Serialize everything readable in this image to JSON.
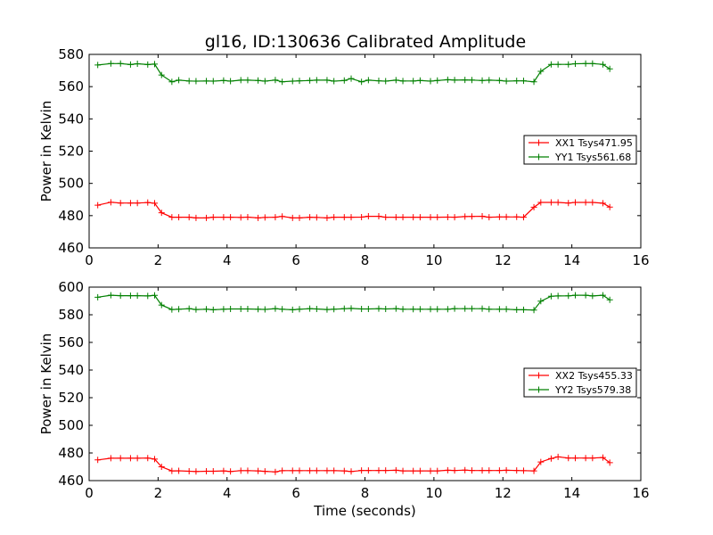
{
  "figure": {
    "title": "gl16, ID:130636 Calibrated Amplitude"
  },
  "colors": {
    "xx": "#ff0000",
    "yy": "#008000"
  },
  "chart_data": [
    {
      "type": "line",
      "title": "gl16, ID:130636 Calibrated Amplitude",
      "xlabel": "",
      "ylabel": "Power in Kelvin",
      "xlim": [
        0,
        16
      ],
      "ylim": [
        460,
        580
      ],
      "xticks": [
        0,
        2,
        4,
        6,
        8,
        10,
        12,
        14,
        16
      ],
      "yticks": [
        460,
        480,
        500,
        520,
        540,
        560,
        580
      ],
      "grid": false,
      "legend": "center-right",
      "x": [
        0.25,
        0.63,
        0.91,
        1.2,
        1.4,
        1.7,
        1.9,
        2.1,
        2.4,
        2.6,
        2.9,
        3.1,
        3.4,
        3.6,
        3.9,
        4.1,
        4.4,
        4.6,
        4.9,
        5.1,
        5.4,
        5.6,
        5.9,
        6.1,
        6.4,
        6.6,
        6.9,
        7.1,
        7.4,
        7.6,
        7.9,
        8.1,
        8.4,
        8.6,
        8.9,
        9.1,
        9.4,
        9.6,
        9.9,
        10.1,
        10.4,
        10.6,
        10.9,
        11.1,
        11.4,
        11.6,
        11.9,
        12.1,
        12.4,
        12.6,
        12.9,
        13.1,
        13.4,
        13.6,
        13.9,
        14.1,
        14.4,
        14.6,
        14.9,
        15.1
      ],
      "series": [
        {
          "name": "XX1 Tsys471.95",
          "color": "#ff0000",
          "values": [
            486.5,
            488.3,
            487.8,
            487.8,
            487.8,
            488.1,
            487.7,
            481.8,
            479.0,
            479.0,
            479.0,
            478.6,
            478.6,
            479.0,
            479.0,
            479.0,
            478.9,
            479.1,
            478.6,
            478.9,
            479.0,
            479.5,
            478.6,
            478.6,
            479.0,
            478.9,
            478.6,
            479.0,
            479.0,
            479.0,
            479.1,
            479.6,
            479.6,
            479.0,
            479.0,
            479.0,
            479.0,
            479.0,
            479.0,
            479.0,
            479.1,
            479.0,
            479.4,
            479.5,
            479.6,
            479.0,
            479.2,
            479.2,
            479.2,
            479.0,
            485.2,
            488.2,
            488.2,
            488.2,
            487.8,
            488.2,
            488.2,
            488.2,
            487.7,
            485.3
          ]
        },
        {
          "name": "YY1 Tsys561.68",
          "color": "#008000",
          "values": [
            573.4,
            574.3,
            574.3,
            573.7,
            574.2,
            573.7,
            574.0,
            567.2,
            563.0,
            564.0,
            563.5,
            563.4,
            563.5,
            563.4,
            563.8,
            563.4,
            564.0,
            564.0,
            563.8,
            563.4,
            564.1,
            563.0,
            563.4,
            563.6,
            563.8,
            564.0,
            564.0,
            563.4,
            563.8,
            565.0,
            563.0,
            564.0,
            563.6,
            563.4,
            564.0,
            563.5,
            563.5,
            563.8,
            563.4,
            563.8,
            564.3,
            564.1,
            564.2,
            564.1,
            563.8,
            564.0,
            563.8,
            563.4,
            563.6,
            563.6,
            563.0,
            569.5,
            573.8,
            573.8,
            573.8,
            574.2,
            574.3,
            574.3,
            573.8,
            571.0
          ]
        }
      ]
    },
    {
      "type": "line",
      "title": "",
      "xlabel": "Time (seconds)",
      "ylabel": "Power in Kelvin",
      "xlim": [
        0,
        16
      ],
      "ylim": [
        460,
        600
      ],
      "xticks": [
        0,
        2,
        4,
        6,
        8,
        10,
        12,
        14,
        16
      ],
      "yticks": [
        460,
        480,
        500,
        520,
        540,
        560,
        580,
        600
      ],
      "grid": false,
      "legend": "center-right",
      "x": [
        0.25,
        0.63,
        0.91,
        1.2,
        1.4,
        1.7,
        1.9,
        2.1,
        2.4,
        2.6,
        2.9,
        3.1,
        3.4,
        3.6,
        3.9,
        4.1,
        4.4,
        4.6,
        4.9,
        5.1,
        5.4,
        5.6,
        5.9,
        6.1,
        6.4,
        6.6,
        6.9,
        7.1,
        7.4,
        7.6,
        7.9,
        8.1,
        8.4,
        8.6,
        8.9,
        9.1,
        9.4,
        9.6,
        9.9,
        10.1,
        10.4,
        10.6,
        10.9,
        11.1,
        11.4,
        11.6,
        11.9,
        12.1,
        12.4,
        12.6,
        12.9,
        13.1,
        13.4,
        13.6,
        13.9,
        14.1,
        14.4,
        14.6,
        14.9,
        15.1
      ],
      "series": [
        {
          "name": "XX2 Tsys455.33",
          "color": "#ff0000",
          "values": [
            475.0,
            476.2,
            476.2,
            476.2,
            476.2,
            476.3,
            475.6,
            470.0,
            467.0,
            467.1,
            466.8,
            466.6,
            466.8,
            466.8,
            467.0,
            466.6,
            467.2,
            467.2,
            467.0,
            466.7,
            466.3,
            467.2,
            467.2,
            467.2,
            467.2,
            467.2,
            467.2,
            467.2,
            467.0,
            466.6,
            467.3,
            467.3,
            467.3,
            467.3,
            467.5,
            467.0,
            467.0,
            467.0,
            467.0,
            467.0,
            467.5,
            467.3,
            467.6,
            467.3,
            467.3,
            467.3,
            467.3,
            467.5,
            467.3,
            467.2,
            467.0,
            473.5,
            476.0,
            477.2,
            476.3,
            476.3,
            476.3,
            476.3,
            476.7,
            473.0
          ]
        },
        {
          "name": "YY2 Tsys579.38",
          "color": "#008000",
          "values": [
            592.7,
            594.1,
            593.8,
            593.8,
            593.8,
            593.6,
            594.0,
            587.0,
            583.8,
            584.0,
            584.4,
            583.8,
            584.0,
            583.6,
            584.0,
            584.2,
            584.2,
            584.2,
            584.0,
            583.9,
            584.4,
            584.0,
            583.6,
            584.0,
            584.4,
            584.2,
            583.8,
            584.0,
            584.4,
            584.6,
            584.2,
            584.2,
            584.4,
            584.2,
            584.4,
            584.0,
            584.0,
            584.0,
            584.0,
            584.0,
            584.0,
            584.4,
            584.4,
            584.4,
            584.4,
            584.0,
            584.0,
            584.0,
            583.6,
            583.6,
            583.4,
            589.8,
            593.4,
            593.6,
            593.7,
            594.1,
            594.1,
            593.6,
            594.1,
            590.8
          ]
        }
      ]
    }
  ]
}
